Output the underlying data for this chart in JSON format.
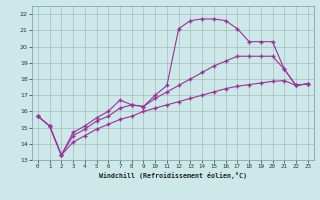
{
  "xlabel": "Windchill (Refroidissement éolien,°C)",
  "background_color": "#cce8e8",
  "grid_color": "#aabbbb",
  "line_color": "#993399",
  "xlim": [
    -0.5,
    23.5
  ],
  "ylim": [
    13,
    22.5
  ],
  "xticks": [
    0,
    1,
    2,
    3,
    4,
    5,
    6,
    7,
    8,
    9,
    10,
    11,
    12,
    13,
    14,
    15,
    16,
    17,
    18,
    19,
    20,
    21,
    22,
    23
  ],
  "yticks": [
    13,
    14,
    15,
    16,
    17,
    18,
    19,
    20,
    21,
    22
  ],
  "series1": [
    [
      0,
      15.7
    ],
    [
      1,
      15.1
    ],
    [
      2,
      13.3
    ],
    [
      3,
      14.7
    ],
    [
      4,
      15.1
    ],
    [
      5,
      15.6
    ],
    [
      6,
      16.0
    ],
    [
      7,
      16.7
    ],
    [
      8,
      16.4
    ],
    [
      9,
      16.3
    ],
    [
      10,
      17.0
    ],
    [
      11,
      17.6
    ],
    [
      12,
      21.1
    ],
    [
      13,
      21.6
    ],
    [
      14,
      21.7
    ],
    [
      15,
      21.7
    ],
    [
      16,
      21.6
    ],
    [
      17,
      21.1
    ],
    [
      18,
      20.3
    ],
    [
      19,
      20.3
    ],
    [
      20,
      20.3
    ],
    [
      21,
      18.6
    ],
    [
      22,
      17.6
    ],
    [
      23,
      17.7
    ]
  ],
  "series2": [
    [
      0,
      15.7
    ],
    [
      1,
      15.1
    ],
    [
      2,
      13.3
    ],
    [
      3,
      14.5
    ],
    [
      4,
      14.9
    ],
    [
      5,
      15.4
    ],
    [
      6,
      15.7
    ],
    [
      7,
      16.2
    ],
    [
      8,
      16.4
    ],
    [
      9,
      16.3
    ],
    [
      10,
      16.8
    ],
    [
      11,
      17.2
    ],
    [
      12,
      17.6
    ],
    [
      13,
      18.0
    ],
    [
      14,
      18.4
    ],
    [
      15,
      18.8
    ],
    [
      16,
      19.1
    ],
    [
      17,
      19.4
    ],
    [
      18,
      19.4
    ],
    [
      19,
      19.4
    ],
    [
      20,
      19.4
    ],
    [
      21,
      18.6
    ],
    [
      22,
      17.6
    ],
    [
      23,
      17.7
    ]
  ],
  "series3": [
    [
      0,
      15.7
    ],
    [
      1,
      15.1
    ],
    [
      2,
      13.3
    ],
    [
      3,
      14.1
    ],
    [
      4,
      14.5
    ],
    [
      5,
      14.9
    ],
    [
      6,
      15.2
    ],
    [
      7,
      15.5
    ],
    [
      8,
      15.7
    ],
    [
      9,
      16.0
    ],
    [
      10,
      16.2
    ],
    [
      11,
      16.4
    ],
    [
      12,
      16.6
    ],
    [
      13,
      16.8
    ],
    [
      14,
      17.0
    ],
    [
      15,
      17.2
    ],
    [
      16,
      17.4
    ],
    [
      17,
      17.55
    ],
    [
      18,
      17.65
    ],
    [
      19,
      17.75
    ],
    [
      20,
      17.85
    ],
    [
      21,
      17.9
    ],
    [
      22,
      17.6
    ],
    [
      23,
      17.7
    ]
  ]
}
